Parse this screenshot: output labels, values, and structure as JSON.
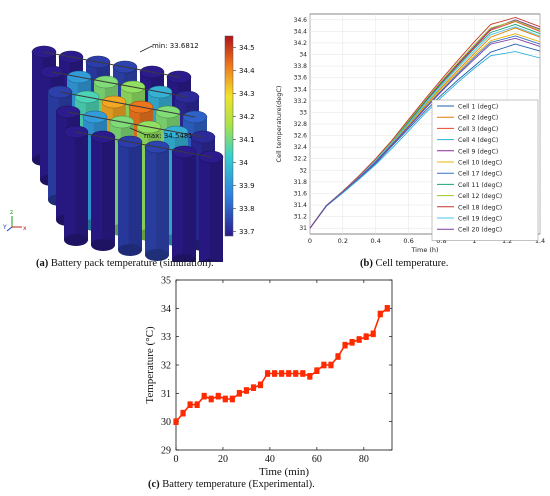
{
  "panel_a": {
    "caption_tag": "(a)",
    "caption_text": "Battery pack temperature (simulation).",
    "annotation_min": "min: 33.6812",
    "annotation_max": "max: 34.5481",
    "colorbar_ticks": [
      "34.5",
      "34.4",
      "34.3",
      "34.2",
      "34.1",
      "34",
      "33.9",
      "33.8",
      "33.7"
    ],
    "colorbar_min": 33.68,
    "colorbar_max": 34.55,
    "axis_triad": {
      "y": "Y",
      "x": "x",
      "z": "z"
    }
  },
  "panel_b": {
    "caption_tag": "(b)",
    "caption_text": "Cell temperature."
  },
  "panel_c": {
    "caption_tag": "(c)",
    "caption_text": "Battery temperature (Experimental)."
  },
  "chart_data": [
    {
      "id": "b",
      "type": "line",
      "title": "",
      "xlabel": "Time (h)",
      "ylabel": "Cell temperature(degC)",
      "xlim": [
        0,
        1.4
      ],
      "ylim": [
        30.9,
        34.7
      ],
      "xticks": [
        "0",
        "0.2",
        "0.4",
        "0.6",
        "0.8",
        "1",
        "1.2",
        "1.4"
      ],
      "yticks": [
        "31",
        "31.2",
        "31.4",
        "31.6",
        "31.8",
        "32",
        "32.2",
        "32.4",
        "32.6",
        "32.8",
        "33",
        "33.2",
        "33.4",
        "33.6",
        "33.8",
        "34",
        "34.2",
        "34.4",
        "34.6"
      ],
      "grid": true,
      "legend_position": "bottom-right",
      "x": [
        0,
        0.1,
        0.2,
        0.3,
        0.4,
        0.5,
        0.6,
        0.7,
        0.8,
        0.9,
        1.0,
        1.1,
        1.25,
        1.4
      ],
      "series": [
        {
          "name": "Cell 1 (degC)",
          "color": "#1f5fb0",
          "values": [
            31.0,
            31.38,
            31.62,
            31.86,
            32.12,
            32.42,
            32.72,
            33.02,
            33.3,
            33.56,
            33.8,
            34.04,
            34.18,
            34.06
          ]
        },
        {
          "name": "Cell 2 (degC)",
          "color": "#e07b00",
          "values": [
            31.0,
            31.39,
            31.63,
            31.89,
            32.17,
            32.47,
            32.8,
            33.12,
            33.43,
            33.73,
            34.02,
            34.3,
            34.46,
            34.3
          ]
        },
        {
          "name": "Cell 3 (degC)",
          "color": "#e8442e",
          "values": [
            31.0,
            31.39,
            31.64,
            31.9,
            32.18,
            32.5,
            32.84,
            33.18,
            33.5,
            33.82,
            34.12,
            34.42,
            34.57,
            34.4
          ]
        },
        {
          "name": "Cell 4 (degC)",
          "color": "#2ab0d9",
          "values": [
            31.0,
            31.38,
            31.61,
            31.85,
            32.1,
            32.38,
            32.68,
            32.98,
            33.26,
            33.52,
            33.76,
            33.98,
            34.05,
            33.94
          ]
        },
        {
          "name": "Cell 9 (degC)",
          "color": "#8a2a9e",
          "values": [
            31.0,
            31.39,
            31.64,
            31.9,
            32.19,
            32.51,
            32.85,
            33.19,
            33.52,
            33.84,
            34.14,
            34.44,
            34.6,
            34.44
          ]
        },
        {
          "name": "Cell 10 (degC)",
          "color": "#e8b400",
          "values": [
            31.0,
            31.39,
            31.63,
            31.88,
            32.16,
            32.46,
            32.78,
            33.1,
            33.41,
            33.7,
            33.98,
            34.24,
            34.36,
            34.22
          ]
        },
        {
          "name": "Cell 17 (degC)",
          "color": "#3a6fc4",
          "values": [
            31.0,
            31.39,
            31.63,
            31.88,
            32.15,
            32.45,
            32.76,
            33.08,
            33.38,
            33.67,
            33.95,
            34.21,
            34.32,
            34.18
          ]
        },
        {
          "name": "Cell 11 (degC)",
          "color": "#1aa37a",
          "values": [
            31.0,
            31.39,
            31.64,
            31.9,
            32.18,
            32.5,
            32.83,
            33.17,
            33.49,
            33.8,
            34.1,
            34.38,
            34.52,
            34.36
          ]
        },
        {
          "name": "Cell 12 (degC)",
          "color": "#9ccc2a",
          "values": [
            31.0,
            31.39,
            31.64,
            31.9,
            32.19,
            32.51,
            32.86,
            33.21,
            33.54,
            33.86,
            34.17,
            34.46,
            34.58,
            34.42
          ]
        },
        {
          "name": "Cell 18 (degC)",
          "color": "#c0392b",
          "values": [
            31.0,
            31.39,
            31.64,
            31.91,
            32.2,
            32.52,
            32.88,
            33.23,
            33.57,
            33.9,
            34.22,
            34.52,
            34.64,
            34.48
          ]
        },
        {
          "name": "Cell 19 (degC)",
          "color": "#4fc3e8",
          "values": [
            31.0,
            31.39,
            31.63,
            31.89,
            32.17,
            32.48,
            32.81,
            33.14,
            33.46,
            33.77,
            34.06,
            34.34,
            34.48,
            34.32
          ]
        },
        {
          "name": "Cell 20 (degC)",
          "color": "#7b3fa0",
          "values": [
            31.0,
            31.39,
            31.63,
            31.88,
            32.14,
            32.44,
            32.75,
            33.06,
            33.36,
            33.65,
            33.92,
            34.18,
            34.28,
            34.14
          ]
        }
      ]
    },
    {
      "id": "c",
      "type": "line",
      "title": "",
      "xlabel": "Time (min)",
      "ylabel": "Temperature (°C)",
      "xlim": [
        0,
        92
      ],
      "ylim": [
        29,
        35
      ],
      "xticks": [
        "0",
        "20",
        "40",
        "60",
        "80"
      ],
      "yticks": [
        "29",
        "30",
        "31",
        "32",
        "33",
        "34",
        "35"
      ],
      "grid": false,
      "color": "#ff2a00",
      "x": [
        0,
        3,
        6,
        9,
        12,
        15,
        18,
        21,
        24,
        27,
        30,
        33,
        36,
        39,
        42,
        45,
        48,
        51,
        54,
        57,
        60,
        63,
        66,
        69,
        72,
        75,
        78,
        81,
        84,
        87,
        90
      ],
      "values": [
        30.0,
        30.3,
        30.6,
        30.6,
        30.9,
        30.8,
        30.9,
        30.8,
        30.8,
        31.0,
        31.1,
        31.2,
        31.3,
        31.7,
        31.7,
        31.7,
        31.7,
        31.7,
        31.7,
        31.6,
        31.8,
        32.0,
        32.0,
        32.3,
        32.7,
        32.8,
        32.9,
        33.0,
        33.1,
        33.8,
        34.0
      ],
      "error": 0.1
    }
  ]
}
